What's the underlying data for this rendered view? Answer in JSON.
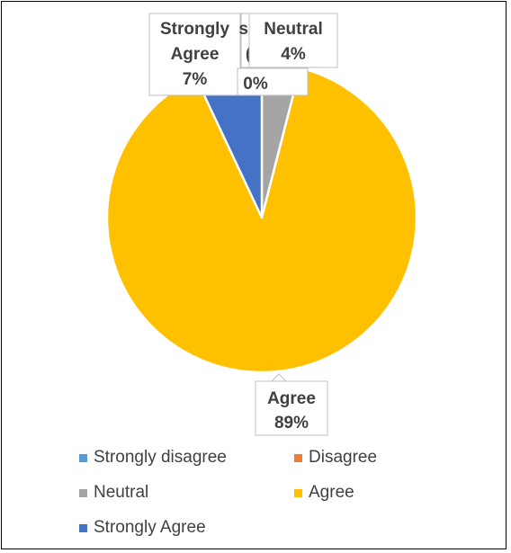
{
  "chart_data": {
    "type": "pie",
    "title": "",
    "categories": [
      "Strongly disagree",
      "Disagree",
      "Neutral",
      "Agree",
      "Strongly Agree"
    ],
    "values": [
      0,
      0,
      4,
      89,
      7
    ],
    "data_labels": [
      {
        "category": "Strongly disagree",
        "name_text": "sa",
        "value_text": "("
      },
      {
        "category": "Disagree",
        "name_text": "",
        "value_text": "0%"
      },
      {
        "category": "Neutral",
        "name_text": "Neutral",
        "value_text": "4%"
      },
      {
        "category": "Agree",
        "name_text": "Agree",
        "value_text": "89%"
      },
      {
        "category": "Strongly Agree",
        "name_text": "Strongly Agree",
        "value_text": "7%"
      }
    ],
    "legend": {
      "position": "bottom",
      "entries": [
        "Strongly disagree",
        "Disagree",
        "Neutral",
        "Agree",
        "Strongly Agree"
      ]
    },
    "colors": [
      "#5B9BD5",
      "#ED7D31",
      "#A5A5A5",
      "#FFC000",
      "#4472C4"
    ]
  }
}
